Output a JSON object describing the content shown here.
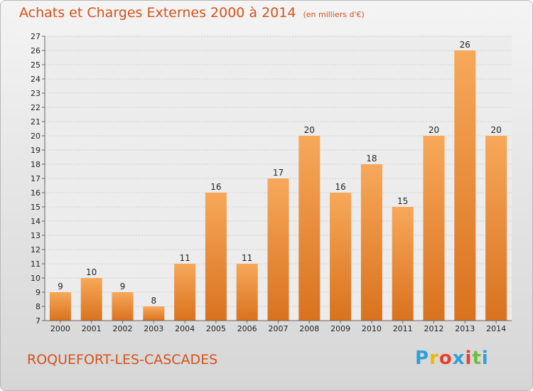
{
  "header": {
    "title": "Achats et Charges Externes 2000 à 2014",
    "unit": "(en milliers d'€)"
  },
  "footer": {
    "commune": "ROQUEFORT-LES-CASCADES",
    "brand": "Proxiti"
  },
  "colors": {
    "title": "#d4521c",
    "bar_light": "#f7a85a",
    "bar_dark": "#d9721e"
  },
  "chart_data": {
    "type": "bar",
    "title": "Achats et Charges Externes 2000 à 2014",
    "subtitle": "(en milliers d'€)",
    "categories": [
      "2000",
      "2001",
      "2002",
      "2003",
      "2004",
      "2005",
      "2006",
      "2007",
      "2008",
      "2009",
      "2010",
      "2011",
      "2012",
      "2013",
      "2014"
    ],
    "values": [
      9,
      10,
      9,
      8,
      11,
      16,
      11,
      17,
      20,
      16,
      18,
      15,
      20,
      26,
      20
    ],
    "ylim": [
      7,
      27
    ],
    "yticks": [
      7,
      8,
      9,
      10,
      11,
      12,
      13,
      14,
      15,
      16,
      17,
      18,
      19,
      20,
      21,
      22,
      23,
      24,
      25,
      26,
      27
    ],
    "grid": true,
    "legend": "none"
  }
}
